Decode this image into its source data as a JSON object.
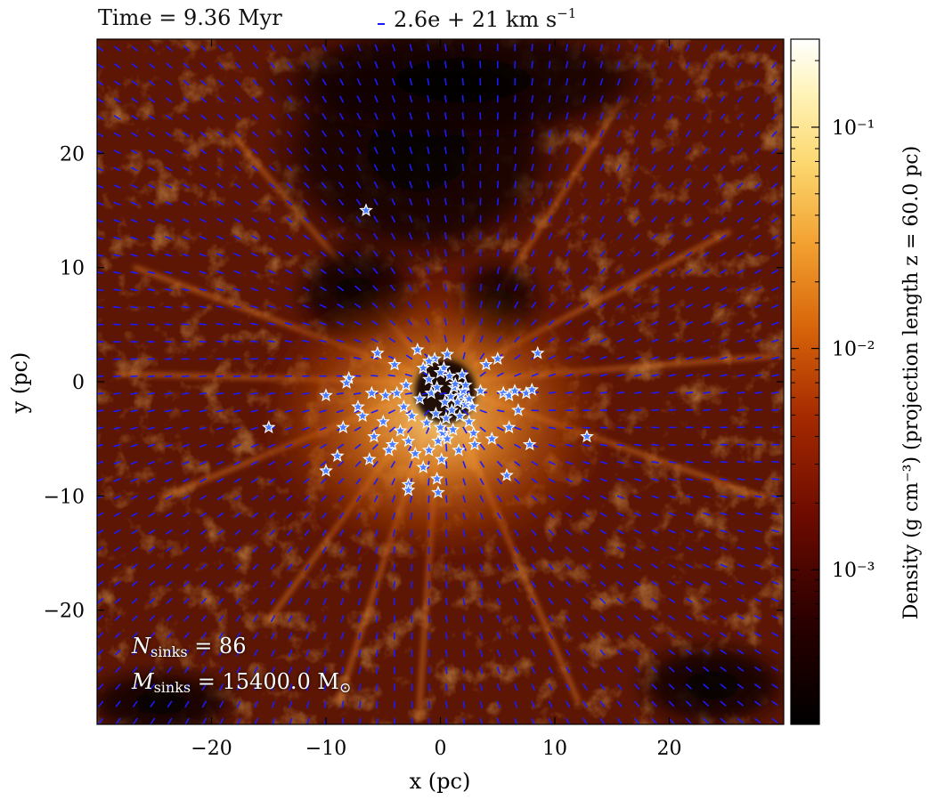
{
  "header": {
    "time_label": "Time = 9.36 Myr",
    "scale_arrow_label": "2.6e + 21 km s",
    "scale_arrow_exponent": "−1"
  },
  "annotations": {
    "n_sinks": "N",
    "n_sinks_sub": "sinks",
    "n_sinks_value": "= 86",
    "m_sinks": "M",
    "m_sinks_sub": "sinks",
    "m_sinks_value": "= 15400.0 M",
    "m_sinks_unit_symbol": "⊙"
  },
  "colorbar": {
    "label": "Density (g cm⁻³)   (projection length z = 60.0 pc)",
    "ticks": [
      {
        "value": 0.1,
        "label": "10⁻¹"
      },
      {
        "value": 0.01,
        "label": "10⁻²"
      },
      {
        "value": 0.001,
        "label": "10⁻³"
      }
    ],
    "range": [
      0.0002,
      0.25
    ],
    "scale": "log",
    "colormap": "afmhot"
  },
  "colors": {
    "arrows": "#1a1aff",
    "stars_fill": "#4a7dff",
    "stars_edge": "#ffffff",
    "annotation_text": "#ffffff"
  },
  "chart_data": {
    "type": "heatmap",
    "xlabel": "x (pc)",
    "ylabel": "y (pc)",
    "xlim": [
      -30,
      30
    ],
    "ylim": [
      -30,
      30
    ],
    "xticks": [
      -20,
      -10,
      0,
      10,
      20
    ],
    "yticks": [
      -20,
      -10,
      0,
      10,
      20
    ],
    "xtick_labels": [
      "−20",
      "−10",
      "0",
      "10",
      "20"
    ],
    "ytick_labels": [
      "−20",
      "−10",
      "0",
      "10",
      "20"
    ],
    "overlays": [
      "velocity vectors",
      "sink particles (stars)"
    ],
    "sinks": [
      {
        "x": -6.5,
        "y": 15.0
      },
      {
        "x": -15.0,
        "y": -4.0
      },
      {
        "x": -10.0,
        "y": -1.2
      },
      {
        "x": -8.0,
        "y": 0.3
      },
      {
        "x": -8.2,
        "y": -0.1
      },
      {
        "x": -5.5,
        "y": 2.5
      },
      {
        "x": -4.0,
        "y": 1.5
      },
      {
        "x": -2.0,
        "y": 2.8
      },
      {
        "x": -1.5,
        "y": 1.2
      },
      {
        "x": -0.5,
        "y": 2.0
      },
      {
        "x": 0.3,
        "y": 1.2
      },
      {
        "x": 0.8,
        "y": 0.5
      },
      {
        "x": -1.0,
        "y": 0.2
      },
      {
        "x": 1.2,
        "y": -0.5
      },
      {
        "x": 1.8,
        "y": -1.2
      },
      {
        "x": 2.2,
        "y": -2.0
      },
      {
        "x": 2.0,
        "y": -0.8
      },
      {
        "x": 1.5,
        "y": -1.8
      },
      {
        "x": 1.0,
        "y": -2.5
      },
      {
        "x": 0.5,
        "y": -3.2
      },
      {
        "x": 0.2,
        "y": -4.5
      },
      {
        "x": -0.2,
        "y": -5.2
      },
      {
        "x": 0.6,
        "y": -5.0
      },
      {
        "x": 1.6,
        "y": -6.0
      },
      {
        "x": 2.5,
        "y": -3.5
      },
      {
        "x": 2.8,
        "y": -2.2
      },
      {
        "x": -0.8,
        "y": -1.0
      },
      {
        "x": -1.8,
        "y": -1.5
      },
      {
        "x": -2.5,
        "y": -3.0
      },
      {
        "x": -3.5,
        "y": -4.3
      },
      {
        "x": -4.2,
        "y": -5.5
      },
      {
        "x": -5.0,
        "y": -3.5
      },
      {
        "x": -6.0,
        "y": -1.0
      },
      {
        "x": -6.8,
        "y": -3.0
      },
      {
        "x": -8.5,
        "y": -4.0
      },
      {
        "x": -9.0,
        "y": -6.5
      },
      {
        "x": -10.0,
        "y": -7.8
      },
      {
        "x": -2.8,
        "y": -5.2
      },
      {
        "x": -1.5,
        "y": -7.5
      },
      {
        "x": -0.3,
        "y": -8.5
      },
      {
        "x": -2.8,
        "y": -9.0
      },
      {
        "x": -2.8,
        "y": -9.5
      },
      {
        "x": -0.2,
        "y": -9.7
      },
      {
        "x": 4.0,
        "y": 1.5
      },
      {
        "x": 5.0,
        "y": 2.0
      },
      {
        "x": 5.5,
        "y": -1.0
      },
      {
        "x": 6.0,
        "y": -1.2
      },
      {
        "x": 6.5,
        "y": -0.8
      },
      {
        "x": 7.5,
        "y": -1.0
      },
      {
        "x": 8.0,
        "y": -0.7
      },
      {
        "x": 8.5,
        "y": 2.5
      },
      {
        "x": 4.5,
        "y": -5.0
      },
      {
        "x": 6.0,
        "y": -4.0
      },
      {
        "x": 7.8,
        "y": -5.5
      },
      {
        "x": 12.8,
        "y": -4.8
      },
      {
        "x": 5.8,
        "y": -8.2
      },
      {
        "x": 3.0,
        "y": -5.5
      },
      {
        "x": -3.8,
        "y": -1.0
      },
      {
        "x": -4.8,
        "y": -1.2
      },
      {
        "x": -3.2,
        "y": -2.2
      },
      {
        "x": 0.0,
        "y": 0.8
      },
      {
        "x": -0.3,
        "y": -0.5
      },
      {
        "x": 0.9,
        "y": -1.3
      },
      {
        "x": 1.3,
        "y": -0.2
      },
      {
        "x": 2.5,
        "y": -1.5
      },
      {
        "x": 2.2,
        "y": -0.3
      },
      {
        "x": 1.7,
        "y": -3.0
      },
      {
        "x": 0.4,
        "y": -1.8
      },
      {
        "x": -0.4,
        "y": -2.8
      },
      {
        "x": -1.2,
        "y": -3.6
      },
      {
        "x": 0.0,
        "y": -4.0
      },
      {
        "x": 1.1,
        "y": -4.2
      },
      {
        "x": -5.8,
        "y": -4.8
      },
      {
        "x": -7.2,
        "y": -2.2
      },
      {
        "x": -1.0,
        "y": 1.8
      },
      {
        "x": 0.6,
        "y": 2.4
      },
      {
        "x": -3.0,
        "y": -0.3
      },
      {
        "x": 3.5,
        "y": -0.8
      },
      {
        "x": 2.9,
        "y": -4.5
      },
      {
        "x": -2.2,
        "y": -6.3
      },
      {
        "x": -1.0,
        "y": -6.0
      },
      {
        "x": 0.1,
        "y": -6.8
      },
      {
        "x": 1.9,
        "y": 0.6
      },
      {
        "x": -4.5,
        "y": -6.0
      },
      {
        "x": 6.8,
        "y": -2.5
      },
      {
        "x": -6.2,
        "y": -6.8
      }
    ]
  }
}
